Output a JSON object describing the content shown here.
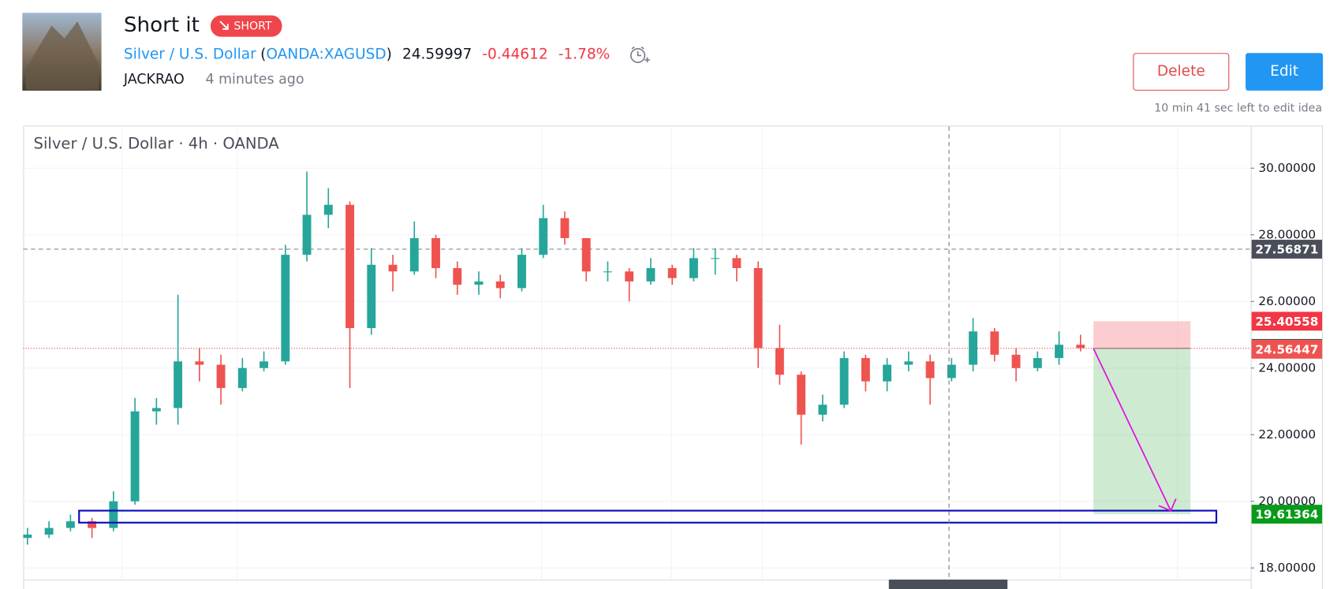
{
  "header": {
    "title": "Short it",
    "badge": "SHORT",
    "symbol_parts": [
      "Silver / U.S. Dollar",
      "(",
      "OANDA:XAGUSD",
      ")"
    ],
    "quote_parts": [
      "24.59997",
      "-0.44612",
      "-1.78%"
    ],
    "author": "JACKRAO",
    "time": "4 minutes ago"
  },
  "actions": {
    "delete": "Delete",
    "edit": "Edit",
    "note": "10 min 41 sec left to edit idea"
  },
  "chart_data": {
    "type": "candlestick",
    "title": "Silver / U.S. Dollar · 4h · OANDA",
    "open": [
      18.9,
      19.0,
      19.2,
      19.4,
      19.2,
      20.0,
      22.7,
      22.8,
      24.2,
      24.1,
      23.4,
      24.0,
      24.2,
      27.4,
      28.6,
      28.9,
      25.2,
      27.1,
      26.9,
      27.9,
      27.0,
      26.5,
      26.6,
      26.4,
      27.4,
      28.5,
      27.9,
      26.9,
      26.9,
      26.6,
      27.0,
      26.7,
      27.3,
      27.3,
      27.0,
      24.6,
      23.8,
      22.6,
      22.9,
      24.3,
      23.6,
      24.1,
      24.2,
      23.7,
      24.1,
      25.1,
      24.4,
      24.0,
      24.3,
      24.7
    ],
    "high": [
      19.2,
      19.4,
      19.6,
      19.5,
      20.3,
      23.1,
      23.1,
      26.2,
      24.6,
      24.4,
      24.3,
      24.5,
      27.7,
      29.9,
      29.4,
      29.0,
      27.6,
      27.4,
      28.4,
      28.0,
      27.2,
      26.9,
      26.8,
      27.6,
      28.9,
      28.7,
      27.9,
      27.2,
      27.0,
      27.3,
      27.1,
      27.6,
      27.6,
      27.4,
      27.2,
      25.3,
      23.9,
      23.2,
      24.5,
      24.4,
      24.3,
      24.5,
      24.4,
      24.3,
      25.5,
      25.2,
      24.6,
      24.5,
      25.1,
      25.0
    ],
    "low": [
      18.7,
      18.9,
      19.1,
      18.9,
      19.1,
      19.9,
      22.3,
      22.3,
      23.6,
      22.9,
      23.3,
      23.9,
      24.1,
      27.2,
      28.2,
      23.4,
      25.0,
      26.3,
      26.8,
      26.7,
      26.2,
      26.2,
      26.1,
      26.3,
      27.3,
      27.7,
      26.6,
      26.6,
      26.0,
      26.5,
      26.5,
      26.6,
      26.8,
      26.6,
      24.0,
      23.5,
      21.7,
      22.4,
      22.8,
      23.3,
      23.3,
      23.9,
      22.9,
      23.6,
      23.9,
      24.2,
      23.6,
      23.9,
      24.1,
      24.5
    ],
    "close": [
      19.0,
      19.2,
      19.4,
      19.2,
      20.0,
      22.7,
      22.8,
      24.2,
      24.1,
      23.4,
      24.0,
      24.2,
      27.4,
      28.6,
      28.9,
      25.2,
      27.1,
      26.9,
      27.9,
      27.0,
      26.5,
      26.6,
      26.4,
      27.4,
      28.5,
      27.9,
      26.9,
      26.9,
      26.6,
      27.0,
      26.7,
      27.3,
      27.3,
      27.0,
      24.6,
      23.8,
      22.6,
      22.9,
      24.3,
      23.6,
      24.1,
      24.2,
      23.7,
      24.1,
      25.1,
      24.4,
      24.0,
      24.3,
      24.7,
      24.6
    ],
    "up_color": "#26a69a",
    "down_color": "#ef5350",
    "ylim": [
      17.65,
      31.25
    ],
    "yticks": [
      {
        "value": 18,
        "label": "18.00000"
      },
      {
        "value": 20,
        "label": "20.00000"
      },
      {
        "value": 22,
        "label": "22.00000"
      },
      {
        "value": 24,
        "label": "24.00000"
      },
      {
        "value": 26,
        "label": "26.00000"
      },
      {
        "value": 28,
        "label": "28.00000"
      },
      {
        "value": 30,
        "label": "30.00000"
      }
    ],
    "grid": true,
    "price_labels": {
      "values": [
        27.56871,
        25.40558,
        24.58994,
        24.56447,
        19.61364
      ],
      "colors": [
        "#4a4e59",
        "#f23645",
        "#4a4e59",
        "#ef5350",
        "#089b1a"
      ],
      "lines": [
        "dashed",
        "none",
        "dotted",
        "none",
        "none"
      ]
    },
    "zone": [
      19.36,
      19.72
    ]
  }
}
